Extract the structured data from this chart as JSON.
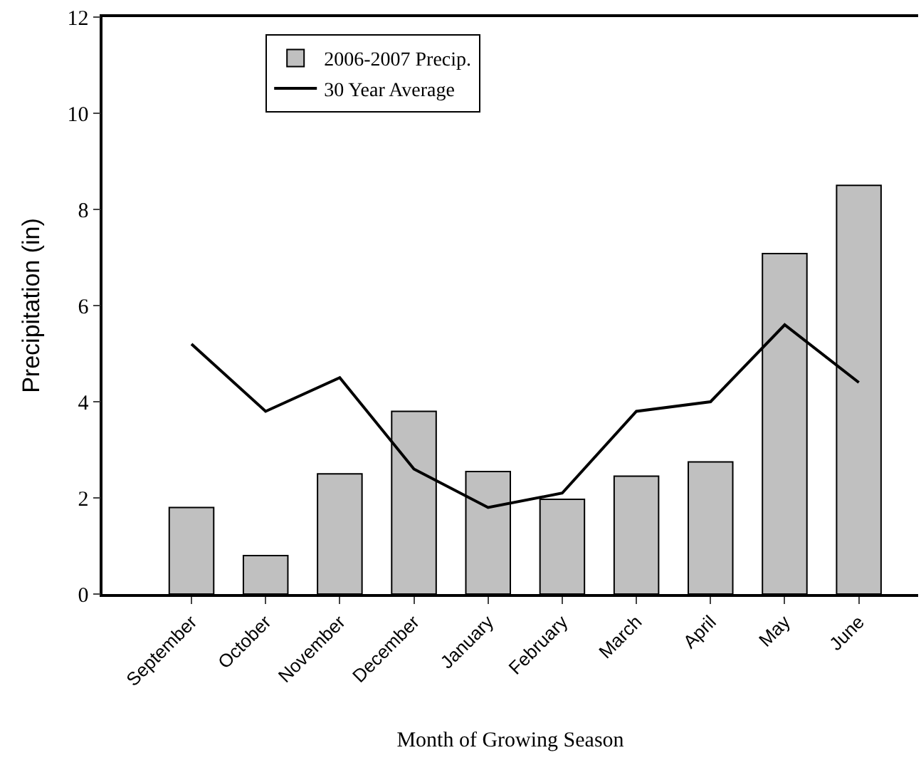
{
  "chart_data": {
    "type": "bar",
    "xlabel": "Month of Growing Season",
    "ylabel": "Precipitation (in)",
    "categories": [
      "September",
      "October",
      "November",
      "December",
      "January",
      "February",
      "March",
      "April",
      "May",
      "June"
    ],
    "series": [
      {
        "name": "2006-2007 Precip.",
        "color": "#c0c0c0",
        "values": [
          1.8,
          0.8,
          2.5,
          3.8,
          2.55,
          1.97,
          2.45,
          2.75,
          7.08,
          8.5
        ]
      },
      {
        "name": "30 Year Average",
        "type": "line",
        "color": "#000000",
        "values": [
          5.2,
          3.8,
          4.5,
          2.6,
          1.8,
          2.1,
          3.8,
          4.0,
          5.6,
          4.4
        ]
      }
    ],
    "ylim": [
      0,
      12
    ],
    "yticks": [
      0,
      2,
      4,
      6,
      8,
      10,
      12
    ],
    "legend": "top left",
    "marker": "none",
    "line_style": "solid"
  }
}
